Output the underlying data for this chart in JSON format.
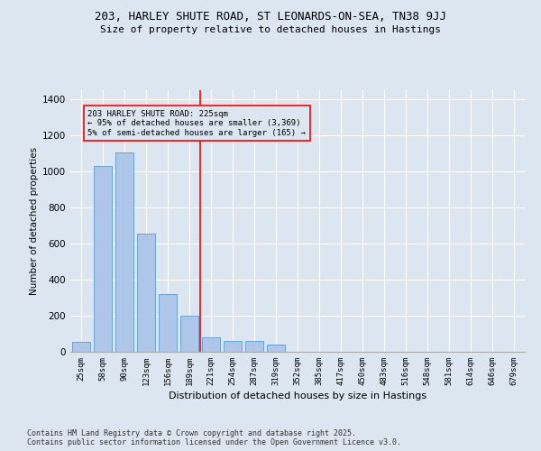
{
  "title_line1": "203, HARLEY SHUTE ROAD, ST LEONARDS-ON-SEA, TN38 9JJ",
  "title_line2": "Size of property relative to detached houses in Hastings",
  "xlabel": "Distribution of detached houses by size in Hastings",
  "ylabel": "Number of detached properties",
  "categories": [
    "25sqm",
    "58sqm",
    "90sqm",
    "123sqm",
    "156sqm",
    "189sqm",
    "221sqm",
    "254sqm",
    "287sqm",
    "319sqm",
    "352sqm",
    "385sqm",
    "417sqm",
    "450sqm",
    "483sqm",
    "516sqm",
    "548sqm",
    "581sqm",
    "614sqm",
    "646sqm",
    "679sqm"
  ],
  "values": [
    55,
    1030,
    1105,
    655,
    320,
    200,
    80,
    60,
    58,
    40,
    0,
    0,
    0,
    0,
    0,
    0,
    0,
    0,
    0,
    0,
    0
  ],
  "bar_color": "#aec6e8",
  "bar_edge_color": "#5b9bd5",
  "background_color": "#dce6f1",
  "vline_color": "red",
  "annotation_text": "203 HARLEY SHUTE ROAD: 225sqm\n← 95% of detached houses are smaller (3,369)\n5% of semi-detached houses are larger (165) →",
  "annotation_box_color": "red",
  "ylim": [
    0,
    1450
  ],
  "yticks": [
    0,
    200,
    400,
    600,
    800,
    1000,
    1200,
    1400
  ],
  "footnote": "Contains HM Land Registry data © Crown copyright and database right 2025.\nContains public sector information licensed under the Open Government Licence v3.0."
}
